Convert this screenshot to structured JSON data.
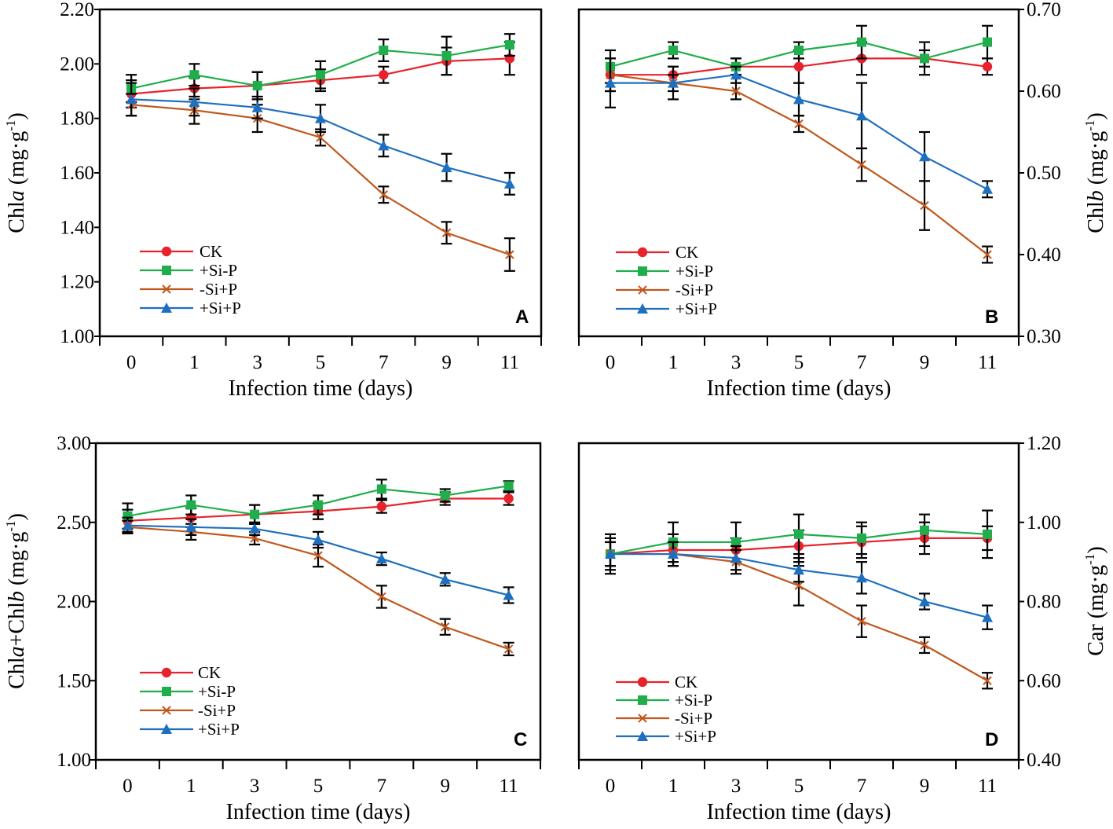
{
  "chart_data": [
    {
      "type": "line",
      "panel": "A",
      "title": "",
      "xlabel": "Infection time (days)",
      "ylabel": {
        "pre": "Chl",
        "italic": "a",
        "post": " (mg·g",
        "sup": "-1",
        "end": ")"
      },
      "y_axis_side": "left",
      "legend_position": "bottom-left",
      "categories": [
        "0",
        "1",
        "3",
        "5",
        "7",
        "9",
        "11"
      ],
      "ylim": [
        1.0,
        2.2
      ],
      "yticks": [
        "1.00",
        "1.20",
        "1.40",
        "1.60",
        "1.80",
        "2.00",
        "2.20"
      ],
      "series": [
        {
          "name": "CK",
          "color": "#e8222b",
          "marker": "circle",
          "values": [
            1.89,
            1.91,
            1.92,
            1.94,
            1.96,
            2.01,
            2.02
          ],
          "errors": [
            0.05,
            0.04,
            0.05,
            0.04,
            0.03,
            0.05,
            0.06
          ]
        },
        {
          "name": "+Si-P",
          "color": "#1fae4b",
          "marker": "square",
          "values": [
            1.91,
            1.96,
            1.92,
            1.96,
            2.05,
            2.03,
            2.07
          ],
          "errors": [
            0.05,
            0.04,
            0.05,
            0.05,
            0.04,
            0.07,
            0.04
          ]
        },
        {
          "name": "-Si+P",
          "color": "#c0581e",
          "marker": "x",
          "values": [
            1.85,
            1.83,
            1.8,
            1.73,
            1.52,
            1.38,
            1.3
          ],
          "errors": [
            0.04,
            0.05,
            0.05,
            0.03,
            0.03,
            0.04,
            0.06
          ]
        },
        {
          "name": "+Si+P",
          "color": "#1f6fbf",
          "marker": "triangle",
          "values": [
            1.87,
            1.86,
            1.84,
            1.8,
            1.7,
            1.62,
            1.56
          ],
          "errors": [
            0.06,
            0.05,
            0.04,
            0.05,
            0.04,
            0.05,
            0.04
          ]
        }
      ]
    },
    {
      "type": "line",
      "panel": "B",
      "title": "",
      "xlabel": "Infection time (days)",
      "ylabel": {
        "pre": "Chl",
        "italic": "b",
        "post": " (mg·g",
        "sup": "-1",
        "end": ")"
      },
      "y_axis_side": "right",
      "legend_position": "bottom-left",
      "categories": [
        "0",
        "1",
        "3",
        "5",
        "7",
        "9",
        "11"
      ],
      "ylim": [
        0.3,
        0.7
      ],
      "yticks": [
        "0.30",
        "0.40",
        "0.50",
        "0.60",
        "0.70"
      ],
      "series": [
        {
          "name": "CK",
          "color": "#e8222b",
          "marker": "circle",
          "values": [
            0.62,
            0.62,
            0.63,
            0.63,
            0.64,
            0.64,
            0.63
          ],
          "errors": [
            0.02,
            0.01,
            0.01,
            0.02,
            0.02,
            0.01,
            0.01
          ]
        },
        {
          "name": "+Si-P",
          "color": "#1fae4b",
          "marker": "square",
          "values": [
            0.63,
            0.65,
            0.63,
            0.65,
            0.66,
            0.64,
            0.66
          ],
          "errors": [
            0.02,
            0.01,
            0.01,
            0.01,
            0.02,
            0.02,
            0.02
          ]
        },
        {
          "name": "-Si+P",
          "color": "#c0581e",
          "marker": "x",
          "values": [
            0.62,
            0.61,
            0.6,
            0.56,
            0.51,
            0.46,
            0.4
          ],
          "errors": [
            0.02,
            0.02,
            0.01,
            0.01,
            0.02,
            0.03,
            0.01
          ]
        },
        {
          "name": "+Si+P",
          "color": "#1f6fbf",
          "marker": "triangle",
          "values": [
            0.61,
            0.61,
            0.62,
            0.59,
            0.57,
            0.52,
            0.48
          ],
          "errors": [
            0.03,
            0.01,
            0.01,
            0.02,
            0.04,
            0.03,
            0.01
          ]
        }
      ]
    },
    {
      "type": "line",
      "panel": "C",
      "title": "",
      "xlabel": "Infection time (days)",
      "ylabel": {
        "pre": "Chl",
        "italic": "a",
        "mid": "+Chl",
        "italic2": "b",
        "post": " (mg·g",
        "sup": "-1",
        "end": ")"
      },
      "y_axis_side": "left",
      "legend_position": "bottom-left",
      "categories": [
        "0",
        "1",
        "3",
        "5",
        "7",
        "9",
        "11"
      ],
      "ylim": [
        1.0,
        3.0
      ],
      "yticks": [
        "1.00",
        "1.50",
        "2.00",
        "2.50",
        "3.00"
      ],
      "series": [
        {
          "name": "CK",
          "color": "#e8222b",
          "marker": "circle",
          "values": [
            2.51,
            2.53,
            2.55,
            2.57,
            2.6,
            2.65,
            2.65
          ],
          "errors": [
            0.07,
            0.06,
            0.06,
            0.05,
            0.04,
            0.04,
            0.04
          ]
        },
        {
          "name": "+Si-P",
          "color": "#1fae4b",
          "marker": "square",
          "values": [
            2.54,
            2.61,
            2.55,
            2.61,
            2.71,
            2.67,
            2.73
          ],
          "errors": [
            0.08,
            0.06,
            0.06,
            0.06,
            0.06,
            0.04,
            0.03
          ]
        },
        {
          "name": "-Si+P",
          "color": "#c0581e",
          "marker": "x",
          "values": [
            2.47,
            2.44,
            2.4,
            2.29,
            2.03,
            1.84,
            1.7
          ],
          "errors": [
            0.04,
            0.05,
            0.04,
            0.07,
            0.07,
            0.05,
            0.04
          ]
        },
        {
          "name": "+Si+P",
          "color": "#1f6fbf",
          "marker": "triangle",
          "values": [
            2.48,
            2.47,
            2.46,
            2.39,
            2.27,
            2.14,
            2.04
          ],
          "errors": [
            0.05,
            0.05,
            0.04,
            0.05,
            0.04,
            0.04,
            0.05
          ]
        }
      ]
    },
    {
      "type": "line",
      "panel": "D",
      "title": "",
      "xlabel": "Infection time (days)",
      "ylabel": {
        "pre": "Car",
        "post": " (mg·g",
        "sup": "-1",
        "end": ")"
      },
      "y_axis_side": "right",
      "legend_position": "bottom-left",
      "categories": [
        "0",
        "1",
        "3",
        "5",
        "7",
        "9",
        "11"
      ],
      "ylim": [
        0.4,
        1.2
      ],
      "yticks": [
        "0.40",
        "0.60",
        "0.80",
        "1.00",
        "1.20"
      ],
      "series": [
        {
          "name": "CK",
          "color": "#e8222b",
          "marker": "circle",
          "values": [
            0.92,
            0.93,
            0.93,
            0.94,
            0.95,
            0.96,
            0.96
          ],
          "errors": [
            0.04,
            0.04,
            0.03,
            0.04,
            0.04,
            0.04,
            0.03
          ]
        },
        {
          "name": "+Si-P",
          "color": "#1fae4b",
          "marker": "square",
          "values": [
            0.92,
            0.95,
            0.95,
            0.97,
            0.96,
            0.98,
            0.97
          ],
          "errors": [
            0.05,
            0.05,
            0.05,
            0.05,
            0.04,
            0.04,
            0.06
          ]
        },
        {
          "name": "-Si+P",
          "color": "#c0581e",
          "marker": "x",
          "values": [
            0.92,
            0.92,
            0.9,
            0.84,
            0.75,
            0.69,
            0.6
          ],
          "errors": [
            0.03,
            0.03,
            0.03,
            0.05,
            0.04,
            0.02,
            0.02
          ]
        },
        {
          "name": "+Si+P",
          "color": "#1f6fbf",
          "marker": "triangle",
          "values": [
            0.92,
            0.92,
            0.91,
            0.88,
            0.86,
            0.8,
            0.76
          ],
          "errors": [
            0.03,
            0.03,
            0.03,
            0.03,
            0.04,
            0.02,
            0.03
          ]
        }
      ]
    }
  ]
}
